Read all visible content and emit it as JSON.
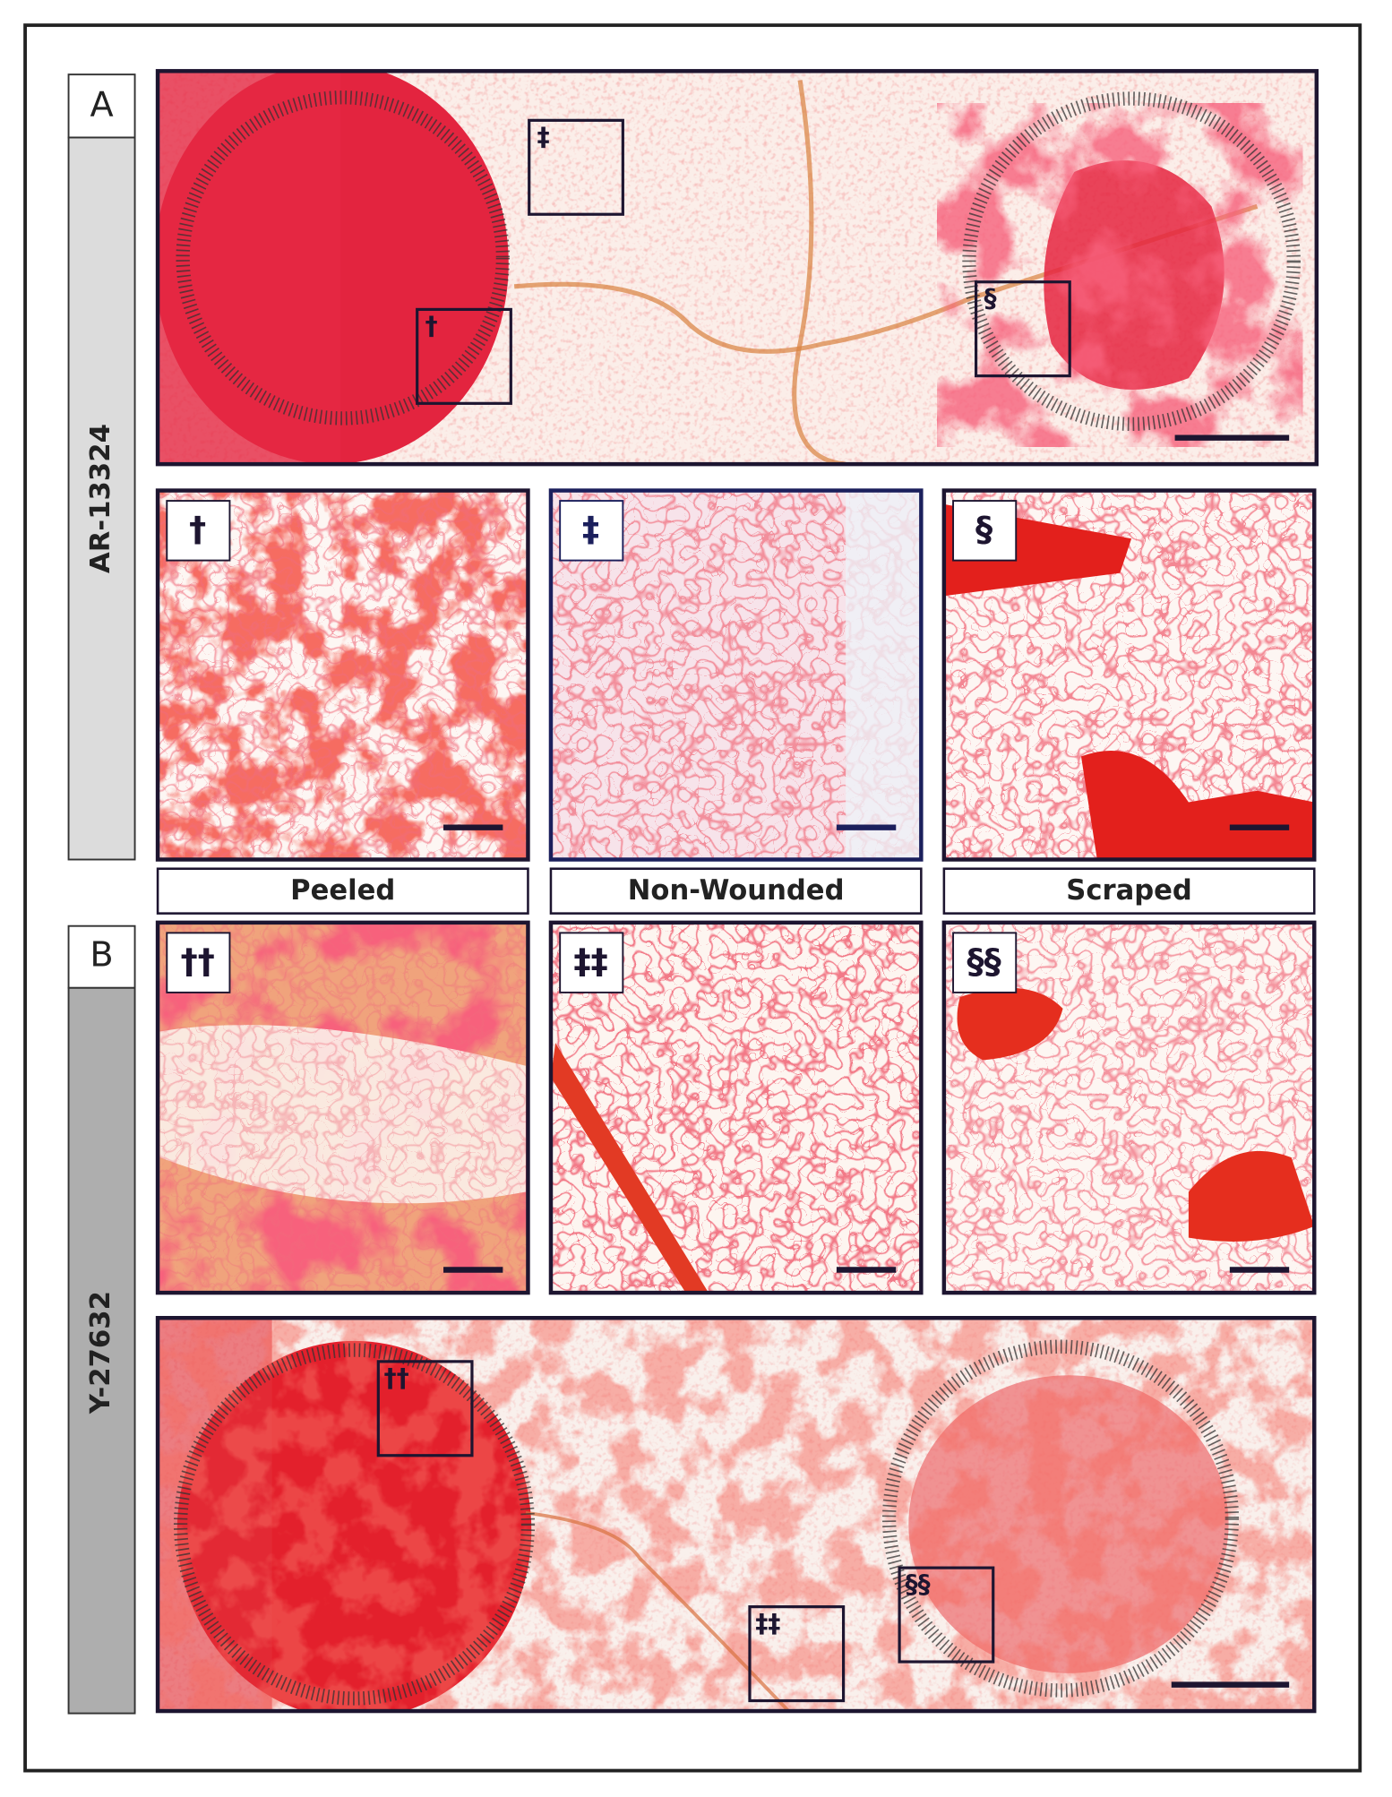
{
  "figure": {
    "panel_a": {
      "letter": "A",
      "compound": "AR-13324",
      "insets": [
        "†",
        "‡",
        "§"
      ]
    },
    "panel_b": {
      "letter": "B",
      "compound": "Y-27632",
      "insets": [
        "††",
        "‡‡",
        "§§"
      ]
    },
    "conditions": [
      "Peeled",
      "Non-Wounded",
      "Scraped"
    ]
  }
}
